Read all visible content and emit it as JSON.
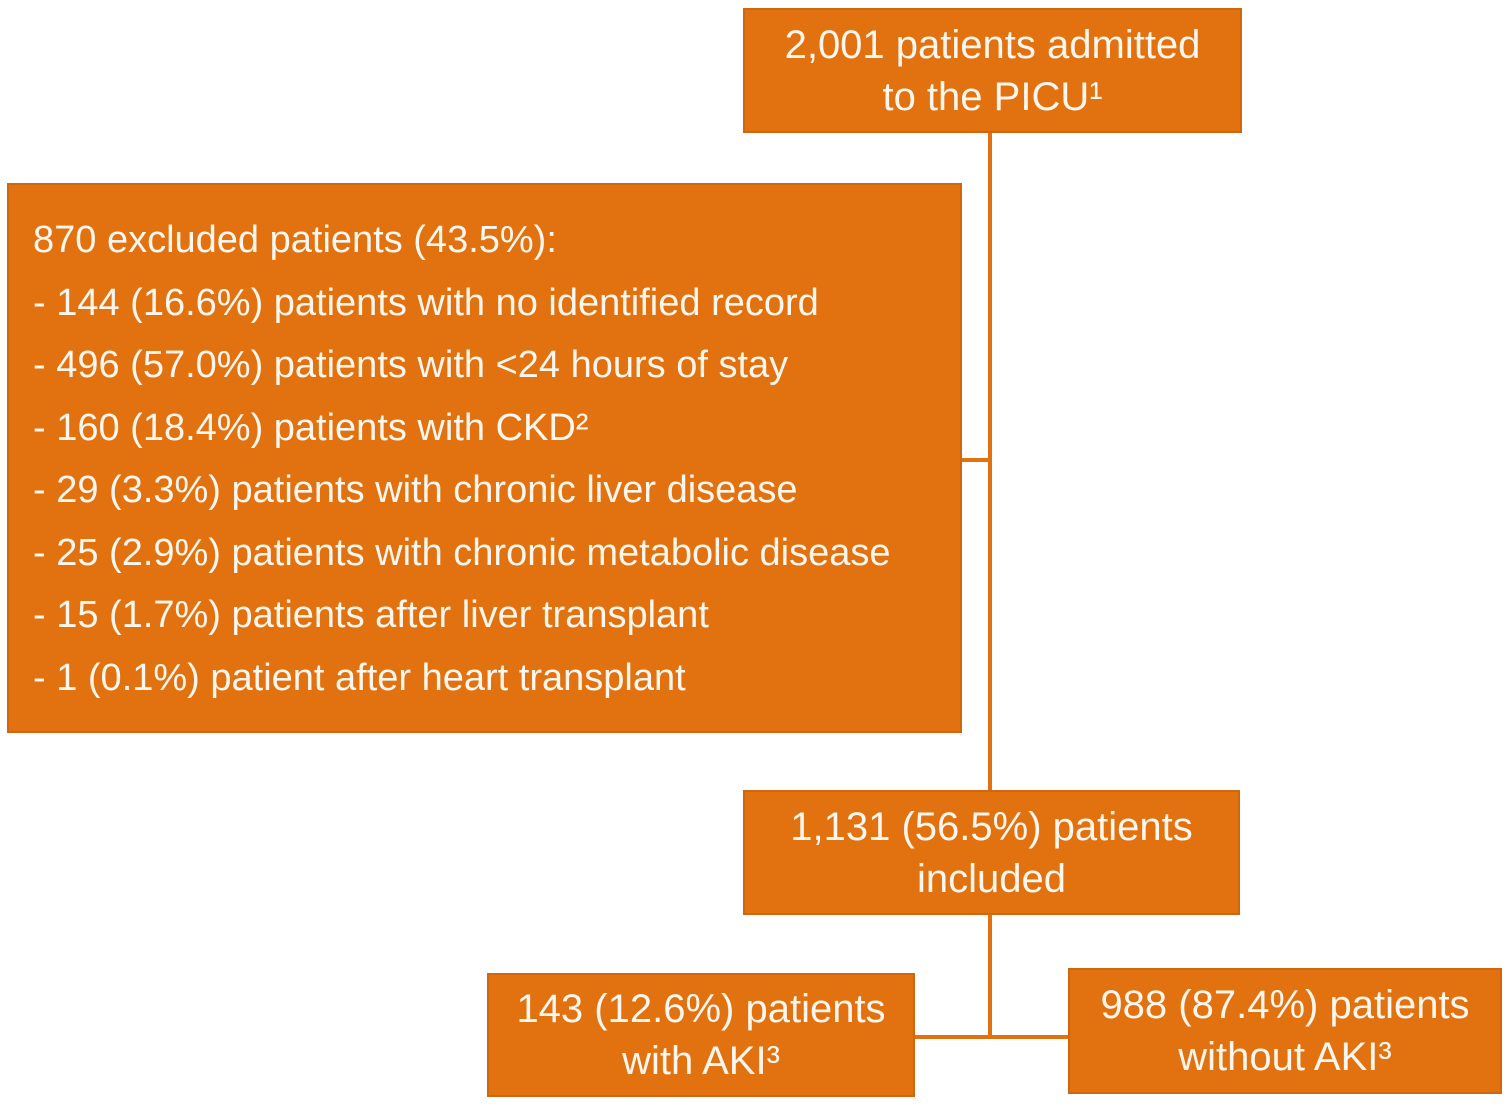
{
  "colors": {
    "box_fill": "#e2710f",
    "box_border": "#d0660e",
    "connector": "#e2710f",
    "text": "#fbf6ee",
    "background": "#ffffff"
  },
  "flowchart": {
    "top_box": {
      "line1": "2,001 patients admitted",
      "line2": "to the PICU¹"
    },
    "excluded_box": {
      "title": "870 excluded patients (43.5%):",
      "items": [
        "- 144 (16.6%) patients with no identified record",
        "- 496 (57.0%) patients with <24 hours of stay",
        "- 160 (18.4%) patients with CKD²",
        "- 29 (3.3%) patients with chronic liver disease",
        "- 25 (2.9%) patients with chronic metabolic disease",
        "- 15 (1.7%) patients after liver transplant",
        "- 1 (0.1%) patient after heart transplant"
      ]
    },
    "included_box": {
      "line1": "1,131 (56.5%) patients",
      "line2": "included"
    },
    "aki_box": {
      "line1": "143 (12.6%) patients",
      "line2": "with AKI³"
    },
    "no_aki_box": {
      "line1": "988 (87.4%) patients",
      "line2": "without AKI³"
    }
  }
}
